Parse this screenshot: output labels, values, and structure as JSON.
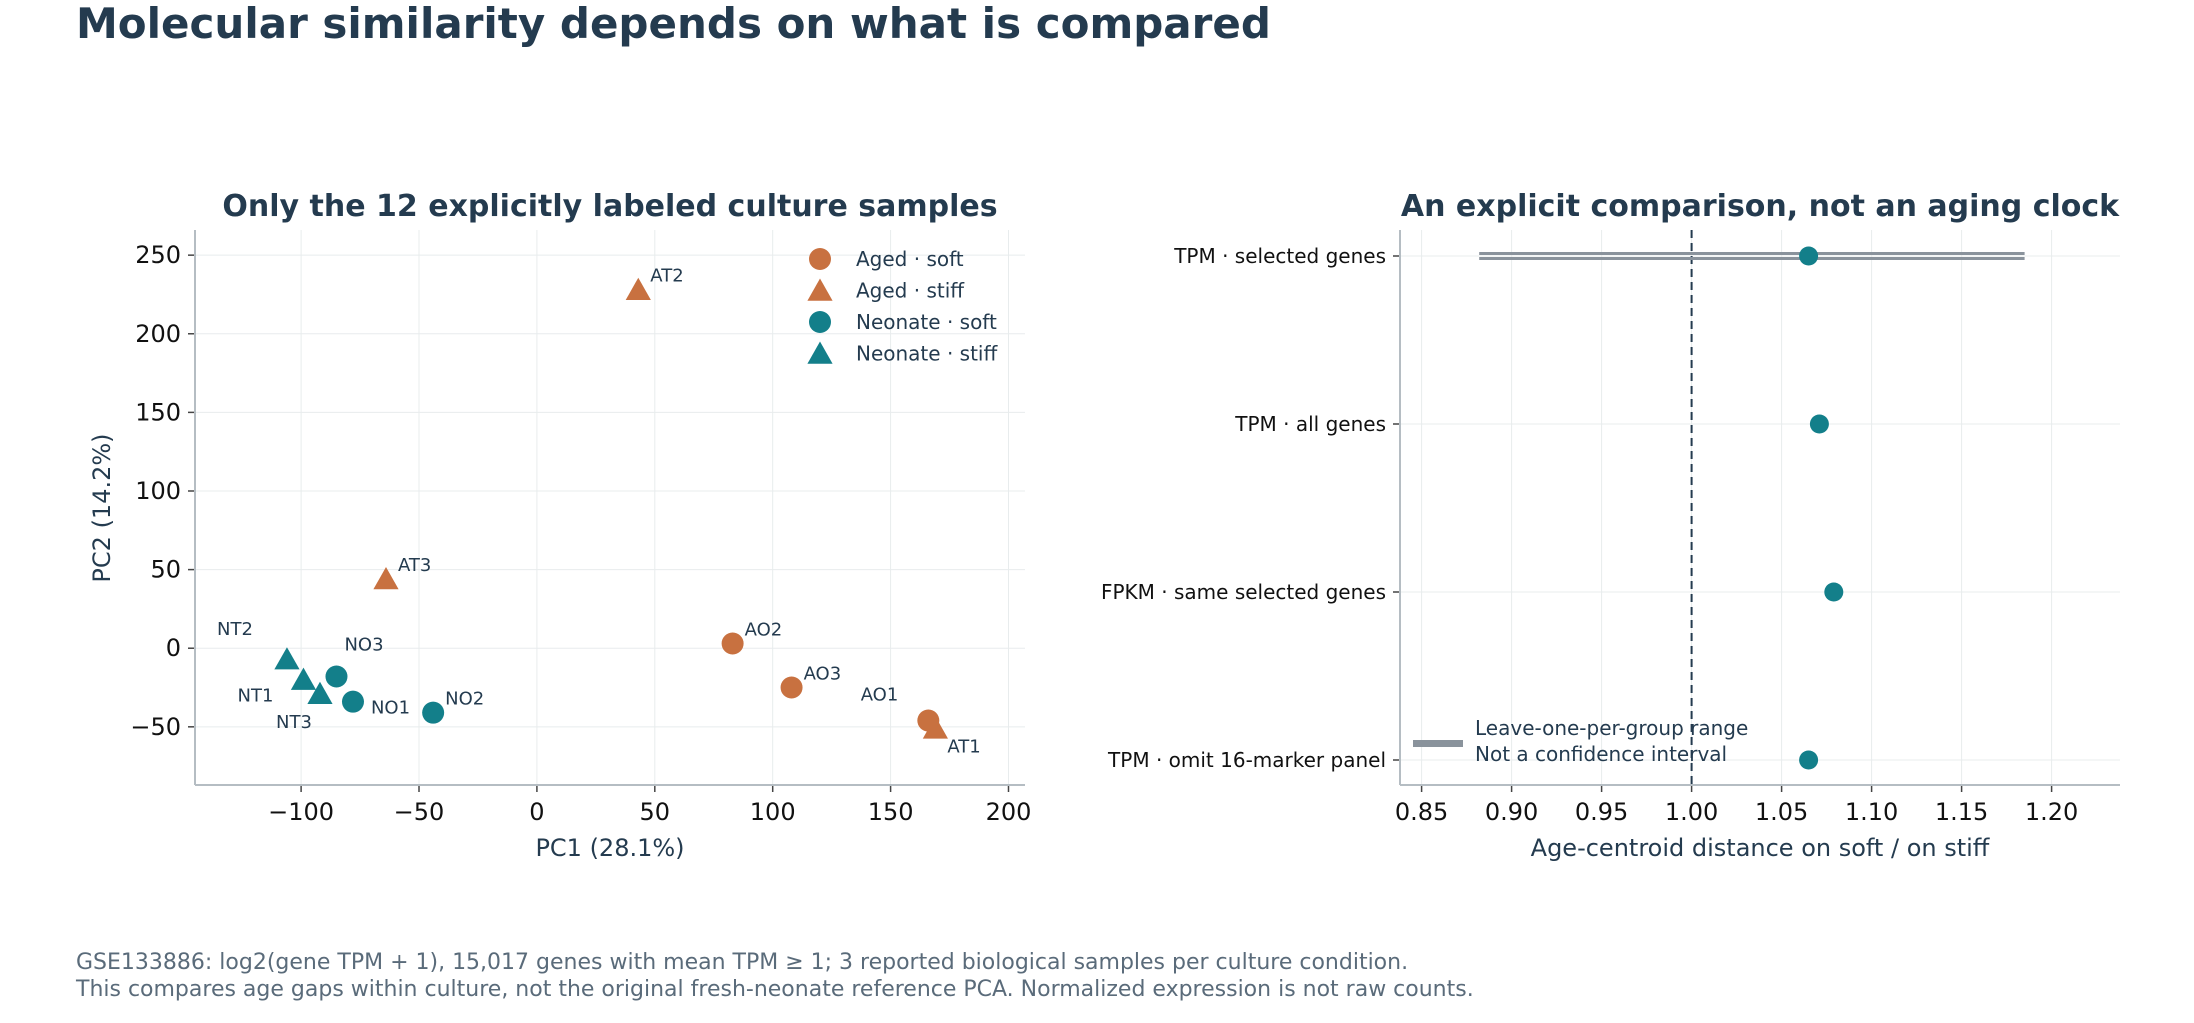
{
  "page_title": "Molecular similarity depends on what is compared",
  "footnotes": [
    "GSE133886: log2(gene TPM + 1), 15,017 genes with mean TPM ≥ 1; 3 reported biological samples per culture condition.",
    "This compares age gaps within culture, not the original fresh-neonate reference PCA. Normalized expression is not raw counts."
  ],
  "colors": {
    "aged": "#c87140",
    "neonate": "#137f8a",
    "text": "#243b4f",
    "grid": "#e8eced",
    "axis": "#b5bdc3",
    "range_bar": "#8a939c"
  },
  "chart_data": [
    {
      "type": "scatter",
      "title": "Only the 12 explicitly labeled culture samples",
      "xlabel": "PC1 (28.1%)",
      "ylabel": "PC2 (14.2%)",
      "xlim": [
        -145,
        207
      ],
      "ylim": [
        -87,
        266
      ],
      "xticks": [
        -100,
        -50,
        0,
        50,
        100,
        150,
        200
      ],
      "xtick_labels": [
        "−100",
        "−50",
        "0",
        "50",
        "100",
        "150",
        "200"
      ],
      "yticks": [
        -50,
        0,
        50,
        100,
        150,
        200,
        250
      ],
      "ytick_labels": [
        "−50",
        "0",
        "50",
        "100",
        "150",
        "200",
        "250"
      ],
      "grid": true,
      "legend_position": "top-right",
      "series": [
        {
          "name": "Aged · soft",
          "color": "#c87140",
          "marker": "circle",
          "points": [
            {
              "label": "AO1",
              "x": 166,
              "y": -46
            },
            {
              "label": "AO2",
              "x": 83,
              "y": 3
            },
            {
              "label": "AO3",
              "x": 108,
              "y": -25
            }
          ]
        },
        {
          "name": "Aged · stiff",
          "color": "#c87140",
          "marker": "triangle",
          "points": [
            {
              "label": "AT1",
              "x": 169,
              "y": -51
            },
            {
              "label": "AT2",
              "x": 43,
              "y": 228
            },
            {
              "label": "AT3",
              "x": -64,
              "y": 44
            }
          ]
        },
        {
          "name": "Neonate · soft",
          "color": "#137f8a",
          "marker": "circle",
          "points": [
            {
              "label": "NO1",
              "x": -78,
              "y": -34
            },
            {
              "label": "NO2",
              "x": -44,
              "y": -41
            },
            {
              "label": "NO3",
              "x": -85,
              "y": -18
            }
          ]
        },
        {
          "name": "Neonate · stiff",
          "color": "#137f8a",
          "marker": "triangle",
          "points": [
            {
              "label": "NT1",
              "x": -99,
              "y": -20
            },
            {
              "label": "NT2",
              "x": -106,
              "y": -7
            },
            {
              "label": "NT3",
              "x": -92,
              "y": -29
            }
          ]
        }
      ]
    },
    {
      "type": "scatter",
      "title": "An explicit comparison, not an aging clock",
      "xlabel": "Age-centroid distance on soft / on stiff",
      "xlim": [
        0.838,
        1.238
      ],
      "xticks": [
        0.85,
        0.9,
        0.95,
        1.0,
        1.05,
        1.1,
        1.15,
        1.2
      ],
      "xtick_labels": [
        "0.85",
        "0.90",
        "0.95",
        "1.00",
        "1.05",
        "1.10",
        "1.15",
        "1.20"
      ],
      "reference_line": 1.0,
      "grid": true,
      "categories": [
        "TPM · selected genes",
        "TPM · all genes",
        "FPKM · same selected genes",
        "TPM · omit 16-marker panel"
      ],
      "values": [
        1.065,
        1.071,
        1.079,
        1.065
      ],
      "ranges": [
        [
          0.882,
          1.185
        ],
        null,
        null,
        null
      ],
      "color": "#137f8a",
      "legend_position": "bottom-left",
      "legend": [
        "Leave-one-per-group range",
        "Not a confidence interval"
      ]
    }
  ]
}
